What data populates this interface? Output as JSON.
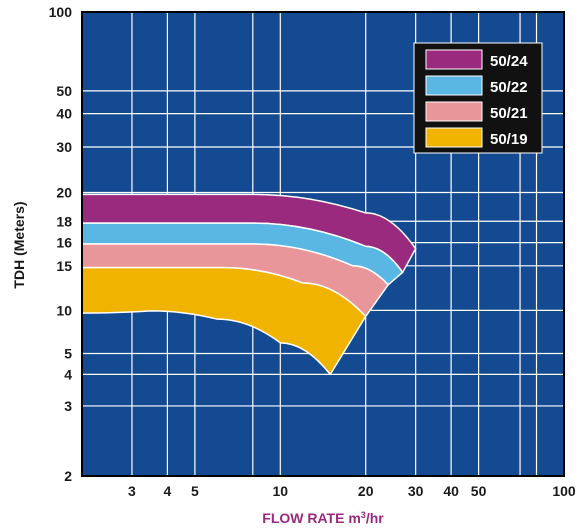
{
  "chart_data": {
    "type": "area",
    "xlabel": "FLOW RATE m",
    "xlabel_sup": "3",
    "xlabel_suffix": "/hr",
    "ylabel": "TDH (Meters)",
    "x_scale": "log",
    "xlim": [
      2,
      100
    ],
    "ylim": [
      2,
      100
    ],
    "x_ticks": [
      {
        "value": 3,
        "label": "3"
      },
      {
        "value": 4,
        "label": "4"
      },
      {
        "value": 5,
        "label": "5"
      },
      {
        "value": 10,
        "label": "10"
      },
      {
        "value": 20,
        "label": "20"
      },
      {
        "value": 30,
        "label": "30"
      },
      {
        "value": 40,
        "label": "40"
      },
      {
        "value": 50,
        "label": "50"
      },
      {
        "value": 100,
        "label": "100"
      }
    ],
    "x_grid": [
      3,
      4,
      5,
      8,
      10,
      20,
      30,
      40,
      50,
      70,
      80,
      100
    ],
    "y_ticks": [
      {
        "label": "100",
        "level": 1.0
      },
      {
        "label": "50",
        "level": 0.83
      },
      {
        "label": "40",
        "level": 0.781
      },
      {
        "label": "30",
        "level": 0.709
      },
      {
        "label": "20",
        "level": 0.611
      },
      {
        "label": "18",
        "level": 0.549
      },
      {
        "label": "16",
        "level": 0.503
      },
      {
        "label": "15",
        "level": 0.453
      },
      {
        "label": "10",
        "level": 0.357
      },
      {
        "label": "5",
        "level": 0.264
      },
      {
        "label": "4",
        "level": 0.219
      },
      {
        "label": "3",
        "level": 0.151
      },
      {
        "label": "2",
        "level": 0.0
      }
    ],
    "y_grid_levels": [
      0.83,
      0.781,
      0.709,
      0.611,
      0.549,
      0.503,
      0.453,
      0.357,
      0.264,
      0.219,
      0.151
    ],
    "grid": true,
    "legend_position": "top-right",
    "background_color": "#134a91",
    "grid_color": "#ffffff",
    "series": [
      {
        "name": "50/24",
        "color": "#992a7e",
        "top": [
          [
            2,
            0.607
          ],
          [
            8,
            0.607
          ],
          [
            20,
            0.567
          ],
          [
            30,
            0.49
          ]
        ],
        "bottom": [
          [
            2,
            0.545
          ],
          [
            8,
            0.545
          ],
          [
            20,
            0.495
          ],
          [
            27,
            0.439
          ]
        ]
      },
      {
        "name": "50/22",
        "color": "#5ab7e3",
        "top": [
          [
            2,
            0.545
          ],
          [
            8,
            0.545
          ],
          [
            20,
            0.495
          ],
          [
            27,
            0.439
          ]
        ],
        "bottom": [
          [
            2,
            0.5
          ],
          [
            8,
            0.5
          ],
          [
            18,
            0.453
          ],
          [
            24,
            0.412
          ]
        ]
      },
      {
        "name": "50/21",
        "color": "#e8969a",
        "top": [
          [
            2,
            0.5
          ],
          [
            8,
            0.5
          ],
          [
            18,
            0.453
          ],
          [
            24,
            0.412
          ]
        ],
        "bottom": [
          [
            2,
            0.449
          ],
          [
            6.3,
            0.449
          ],
          [
            12,
            0.416
          ],
          [
            20,
            0.344
          ]
        ]
      },
      {
        "name": "50/19",
        "color": "#f0b400",
        "top": [
          [
            2,
            0.449
          ],
          [
            6.3,
            0.449
          ],
          [
            12,
            0.416
          ],
          [
            20,
            0.344
          ]
        ],
        "bottom": [
          [
            2,
            0.351
          ],
          [
            3.5,
            0.356
          ],
          [
            6,
            0.338
          ],
          [
            10,
            0.287
          ],
          [
            15,
            0.219
          ]
        ]
      }
    ]
  }
}
